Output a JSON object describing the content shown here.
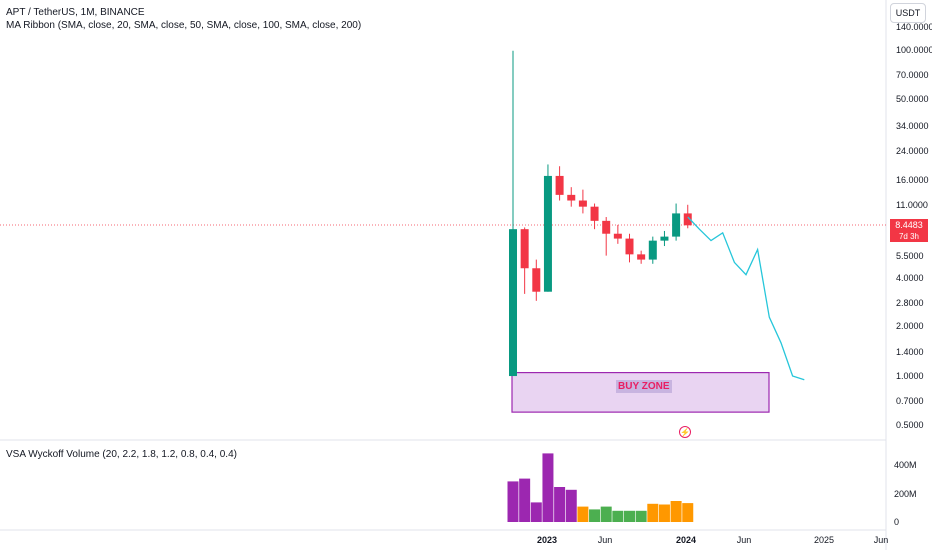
{
  "header": {
    "symbol_line": "APT / TetherUS, 1M, BINANCE",
    "ma_legend": "MA Ribbon (SMA, close, 20, SMA, close, 50, SMA, close, 100, SMA, close, 200)",
    "volume_legend": "VSA Wyckoff Volume (20, 2.2, 1.8, 1.2, 0.8, 0.4, 0.4)",
    "currency_button": "USDT"
  },
  "price_tag": {
    "price": "8.4483",
    "countdown": "7d 3h",
    "color": "#f23645"
  },
  "buy_zone": {
    "label": "BUY ZONE",
    "from_month": "2022-10",
    "to_month": "2024-06",
    "low": 0.6,
    "high": 1.05
  },
  "colors": {
    "up": "#089981",
    "down": "#f23645",
    "projection": "#26c6da",
    "zone_border": "#9c27b0",
    "zone_fill": "#e9d4f2",
    "vol_purple": "#9c27b0",
    "vol_orange": "#ff9800",
    "vol_green": "#4caf50"
  },
  "chart_data": {
    "type": "candlestick",
    "price_axis": {
      "scale": "log",
      "ticks": [
        "140.0000",
        "100.0000",
        "70.0000",
        "50.0000",
        "34.0000",
        "24.0000",
        "16.0000",
        "11.0000",
        "5.5000",
        "4.0000",
        "2.8000",
        "2.0000",
        "1.4000",
        "1.0000",
        "0.7000",
        "0.5000"
      ]
    },
    "time_axis": {
      "ticks": [
        "2023",
        "Jun",
        "2024",
        "Jun",
        "2025",
        "Jun"
      ]
    },
    "candles": [
      {
        "month": "2022-10",
        "open": 1.0,
        "high": 100,
        "low": 1.0,
        "close": 8.0
      },
      {
        "month": "2022-11",
        "open": 8.0,
        "high": 8.2,
        "low": 3.2,
        "close": 4.6
      },
      {
        "month": "2022-12",
        "open": 4.6,
        "high": 5.2,
        "low": 2.9,
        "close": 3.3
      },
      {
        "month": "2023-01",
        "open": 3.3,
        "high": 20,
        "low": 3.3,
        "close": 17
      },
      {
        "month": "2023-02",
        "open": 17,
        "high": 19.5,
        "low": 12,
        "close": 13
      },
      {
        "month": "2023-03",
        "open": 13,
        "high": 14.5,
        "low": 11,
        "close": 12
      },
      {
        "month": "2023-04",
        "open": 12,
        "high": 14,
        "low": 10,
        "close": 11
      },
      {
        "month": "2023-05",
        "open": 11,
        "high": 11.5,
        "low": 8,
        "close": 9
      },
      {
        "month": "2023-06",
        "open": 9,
        "high": 9.5,
        "low": 5.5,
        "close": 7.5
      },
      {
        "month": "2023-07",
        "open": 7.5,
        "high": 8.5,
        "low": 6.5,
        "close": 7
      },
      {
        "month": "2023-08",
        "open": 7,
        "high": 7.5,
        "low": 5,
        "close": 5.6
      },
      {
        "month": "2023-09",
        "open": 5.6,
        "high": 5.9,
        "low": 4.9,
        "close": 5.2
      },
      {
        "month": "2023-10",
        "open": 5.2,
        "high": 7.2,
        "low": 4.9,
        "close": 6.8
      },
      {
        "month": "2023-11",
        "open": 6.8,
        "high": 7.8,
        "low": 6.3,
        "close": 7.2
      },
      {
        "month": "2023-12",
        "open": 7.2,
        "high": 11.5,
        "low": 6.8,
        "close": 10
      },
      {
        "month": "2024-01",
        "open": 10,
        "high": 11.3,
        "low": 8.1,
        "close": 8.4483
      }
    ],
    "projection": [
      [
        "2024-01",
        9.5
      ],
      [
        "2024-02",
        8.0
      ],
      [
        "2024-03",
        6.8
      ],
      [
        "2024-04",
        7.6
      ],
      [
        "2024-05",
        5.0
      ],
      [
        "2024-06",
        4.2
      ],
      [
        "2024-07",
        6.0
      ],
      [
        "2024-08",
        2.3
      ],
      [
        "2024-09",
        1.6
      ],
      [
        "2024-10",
        1.0
      ],
      [
        "2024-11",
        0.95
      ]
    ],
    "volume": {
      "axis_ticks": [
        "400M",
        "200M",
        "0"
      ],
      "bars": [
        {
          "month": "2022-10",
          "value": 290,
          "color": "purple"
        },
        {
          "month": "2022-11",
          "value": 310,
          "color": "purple"
        },
        {
          "month": "2022-12",
          "value": 140,
          "color": "purple"
        },
        {
          "month": "2023-01",
          "value": 490,
          "color": "purple"
        },
        {
          "month": "2023-02",
          "value": 250,
          "color": "purple"
        },
        {
          "month": "2023-03",
          "value": 230,
          "color": "purple"
        },
        {
          "month": "2023-04",
          "value": 110,
          "color": "orange"
        },
        {
          "month": "2023-05",
          "value": 90,
          "color": "green"
        },
        {
          "month": "2023-06",
          "value": 110,
          "color": "green"
        },
        {
          "month": "2023-07",
          "value": 80,
          "color": "green"
        },
        {
          "month": "2023-08",
          "value": 80,
          "color": "green"
        },
        {
          "month": "2023-09",
          "value": 80,
          "color": "green"
        },
        {
          "month": "2023-10",
          "value": 130,
          "color": "orange"
        },
        {
          "month": "2023-11",
          "value": 125,
          "color": "orange"
        },
        {
          "month": "2023-12",
          "value": 150,
          "color": "orange"
        },
        {
          "month": "2024-01",
          "value": 135,
          "color": "orange"
        }
      ]
    }
  }
}
